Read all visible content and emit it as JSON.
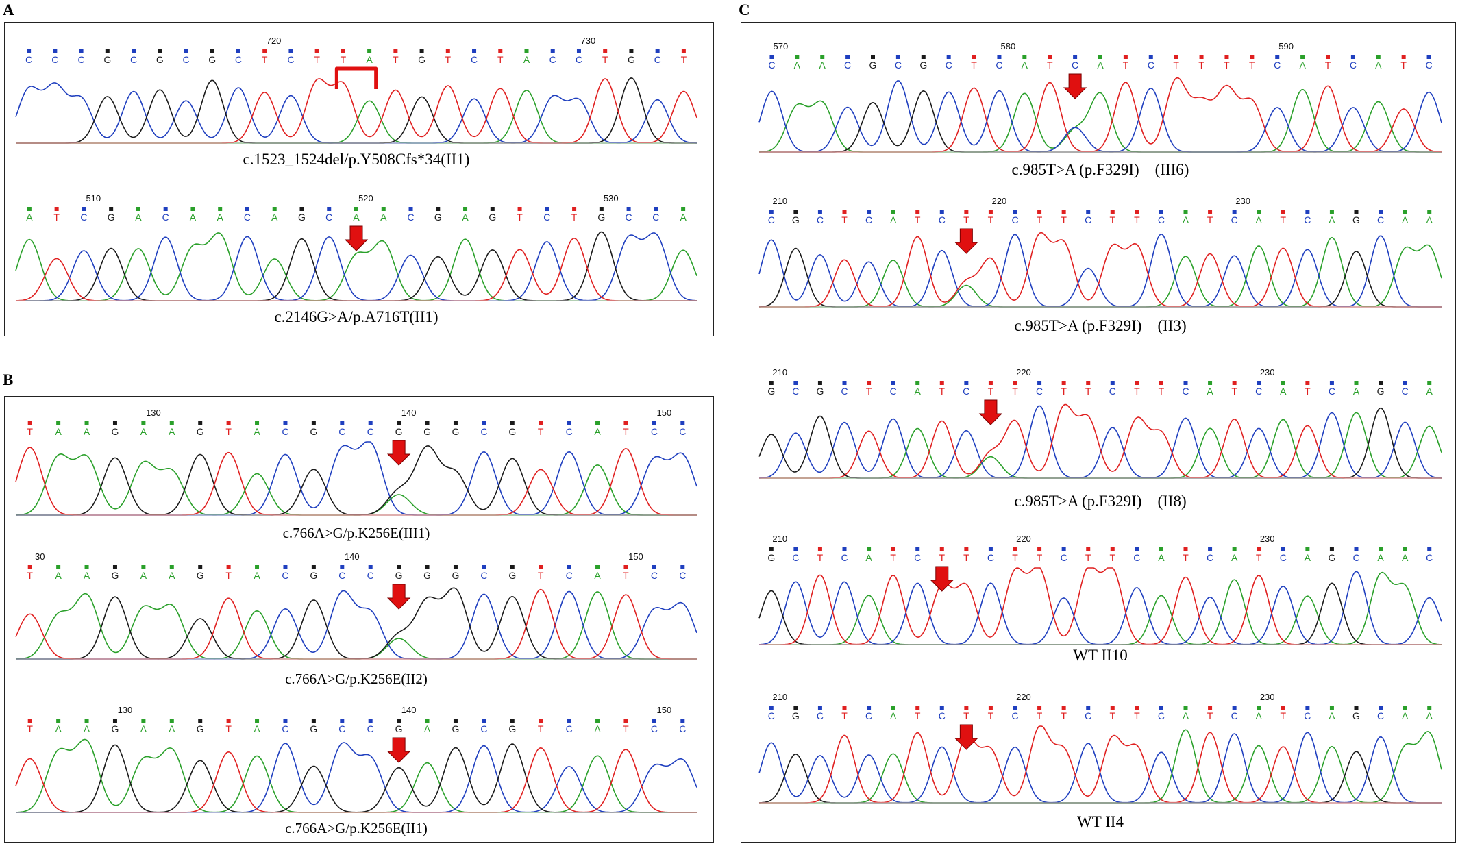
{
  "labels": {
    "A": "A",
    "B": "B",
    "C": "C"
  },
  "colors": {
    "A": "#2aa02a",
    "C": "#1f3fbf",
    "G": "#1a1a1a",
    "T": "#e02020",
    "N": "#9a9a9a",
    "arrow": "#e01010"
  },
  "traces": [
    {
      "id": "A1",
      "panel": "A",
      "seq": "CCCGCGCGCTCTTATGTCTACCTGCT",
      "ticks": [
        "720",
        "730"
      ],
      "caption": "c.1523_1524del/p.Y508Cfs*34(II1)",
      "mark": "bracket"
    },
    {
      "id": "A2",
      "panel": "A",
      "seq": "ATCGACAACAGCAACGAGTCTGCCA",
      "ticks": [
        "510",
        "520",
        "530"
      ],
      "caption": "c.2146G>A/p.A716T(II1)",
      "mark": "arrow"
    },
    {
      "id": "B1",
      "panel": "B",
      "seq": "TAAGAAGTACGCCGGGCGTCATCC",
      "ticks": [
        "130",
        "140",
        "150"
      ],
      "caption": "c.766A>G/p.K256E(III1)",
      "mark": "arrow"
    },
    {
      "id": "B2",
      "panel": "B",
      "seq": "TAAGAAGTACGCCGGGCGTCATCC",
      "ticks": [
        "30",
        "140",
        "150"
      ],
      "caption": "c.766A>G/p.K256E(II2)",
      "mark": "arrow"
    },
    {
      "id": "B3",
      "panel": "B",
      "seq": "TAAGAAGTACGCCGAGCGTCATCC",
      "ticks": [
        "130",
        "140",
        "150"
      ],
      "caption": "c.766A>G/p.K256E(II1)",
      "mark": "arrow"
    },
    {
      "id": "C1",
      "panel": "C",
      "seq": "CAACGCGCTCATCATCTTTTCATCATC",
      "ticks": [
        "570",
        "580",
        "590"
      ],
      "caption": "c.985T>A (p.F329I)　(III6)",
      "mark": "arrow"
    },
    {
      "id": "C2",
      "panel": "C",
      "seq": "CGCTCATCTTCTTCTTCATCATCAGCAA",
      "ticks": [
        "210",
        "220",
        "230"
      ],
      "caption": "c.985T>A (p.F329I)　(II3)",
      "mark": "arrow"
    },
    {
      "id": "C3",
      "panel": "C",
      "seq": "GCGCTCATCTTCTTCTTCATCATCAGCA",
      "ticks": [
        "210",
        "220",
        "230"
      ],
      "caption": "c.985T>A (p.F329I)　(II8)",
      "mark": "arrow"
    },
    {
      "id": "C4",
      "panel": "C",
      "seq": "GCTCATCTTCTTCTTCATCATCAGCAAC",
      "ticks": [
        "210",
        "220",
        "230"
      ],
      "caption": "WT II10",
      "mark": "arrow"
    },
    {
      "id": "C5",
      "panel": "C",
      "seq": "CGCTCATCTTCTTCTTCATCATCAGCAA",
      "ticks": [
        "210",
        "220",
        "230"
      ],
      "caption": "WT II4",
      "mark": "arrow"
    }
  ]
}
